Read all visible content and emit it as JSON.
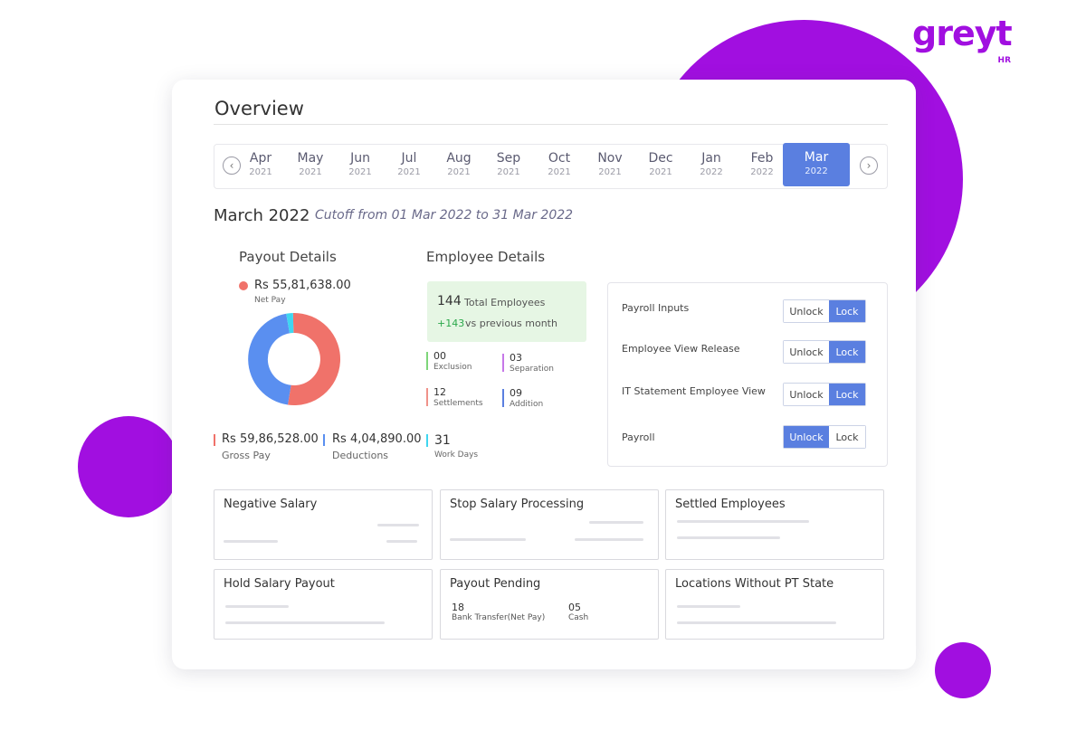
{
  "brand": {
    "logo_text": "greyt",
    "logo_sub": "HR",
    "accent": "#a10fe0",
    "primary": "#5a7fe0"
  },
  "overview": {
    "title": "Overview"
  },
  "months": [
    {
      "m": "Apr",
      "y": "2021"
    },
    {
      "m": "May",
      "y": "2021"
    },
    {
      "m": "Jun",
      "y": "2021"
    },
    {
      "m": "Jul",
      "y": "2021"
    },
    {
      "m": "Aug",
      "y": "2021"
    },
    {
      "m": "Sep",
      "y": "2021"
    },
    {
      "m": "Oct",
      "y": "2021"
    },
    {
      "m": "Nov",
      "y": "2021"
    },
    {
      "m": "Dec",
      "y": "2021"
    },
    {
      "m": "Jan",
      "y": "2022"
    },
    {
      "m": "Feb",
      "y": "2022"
    },
    {
      "m": "Mar",
      "y": "2022"
    }
  ],
  "selected_month": "Mar 2022",
  "period": {
    "heading": "March 2022",
    "cutoff": "Cutoff from 01 Mar 2022 to 31 Mar 2022"
  },
  "payout": {
    "title": "Payout Details",
    "net_pay_value": "Rs 55,81,638.00",
    "net_pay_label": "Net Pay",
    "gross_value": "Rs 59,86,528.00",
    "gross_label": "Gross Pay",
    "deductions_value": "Rs 4,04,890.00",
    "deductions_label": "Deductions",
    "donut_colors": [
      "#f0726a",
      "#5a8ff0",
      "#3fd6f0"
    ]
  },
  "employees": {
    "title": "Employee Details",
    "total_num": "144",
    "total_label": "Total Employees",
    "delta": "+143",
    "delta_label": "vs previous month",
    "stats": [
      {
        "num": "00",
        "label": "Exclusion"
      },
      {
        "num": "03",
        "label": "Separation"
      },
      {
        "num": "12",
        "label": "Settlements"
      },
      {
        "num": "09",
        "label": "Addition"
      },
      {
        "num": "31",
        "label": "Work Days"
      }
    ]
  },
  "toggles": [
    {
      "label": "Payroll Inputs",
      "unlock": "Unlock",
      "lock": "Lock",
      "state": "Lock"
    },
    {
      "label": "Employee View Release",
      "unlock": "Unlock",
      "lock": "Lock",
      "state": "Lock"
    },
    {
      "label": "IT Statement Employee View",
      "unlock": "Unlock",
      "lock": "Lock",
      "state": "Lock"
    },
    {
      "label": "Payroll",
      "unlock": "Unlock",
      "lock": "Lock",
      "state": "Unlock"
    }
  ],
  "tiles": [
    {
      "title": "Negative Salary"
    },
    {
      "title": "Stop Salary Processing"
    },
    {
      "title": "Settled Employees"
    },
    {
      "title": "Hold Salary Payout"
    },
    {
      "title": "Payout Pending",
      "items": [
        {
          "num": "18",
          "label": "Bank Transfer(Net Pay)"
        },
        {
          "num": "05",
          "label": "Cash"
        }
      ]
    },
    {
      "title": "Locations Without PT State"
    }
  ]
}
